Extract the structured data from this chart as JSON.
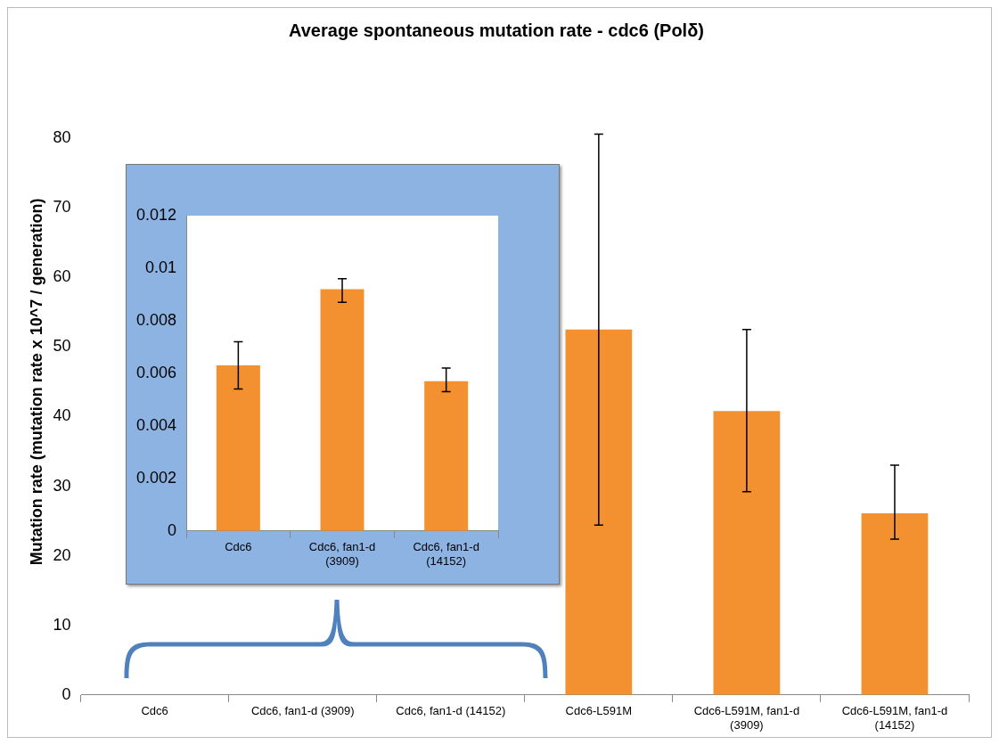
{
  "chart_data": [
    {
      "type": "bar",
      "title": "Average spontaneous mutation rate - cdc6 (Polδ)",
      "ylabel": "Mutation rate (mutation rate x 10^7 / generation)",
      "categories": [
        "Cdc6",
        "Cdc6, fan1-d (3909)",
        "Cdc6, fan1-d (14152)",
        "Cdc6-L591M",
        "Cdc6-L591M, fan1-d (3909)",
        "Cdc6-L591M, fan1-d (14152)"
      ],
      "values": [
        0,
        0,
        0,
        52.5,
        40.8,
        26.1
      ],
      "errors": [
        null,
        null,
        null,
        [
          24.4,
          80.6
        ],
        [
          29.2,
          52.5
        ],
        [
          22.4,
          33.0
        ]
      ],
      "color": "#f39130",
      "ylim": [
        0,
        90
      ],
      "yticks": [
        0,
        10,
        20,
        30,
        40,
        50,
        60,
        70,
        80
      ]
    },
    {
      "type": "bar",
      "categories": [
        "Cdc6",
        "Cdc6, fan1-d (3909)",
        "Cdc6, fan1-d (14152)"
      ],
      "values": [
        0.0063,
        0.0092,
        0.0057
      ],
      "errors": [
        [
          0.0054,
          0.0072
        ],
        [
          0.0087,
          0.0096
        ],
        [
          0.0053,
          0.0062
        ]
      ],
      "color": "#f39130",
      "ylim": [
        0,
        0.012
      ],
      "yticks": [
        0,
        0.002,
        0.004,
        0.006,
        0.008,
        0.01,
        0.012
      ]
    }
  ]
}
